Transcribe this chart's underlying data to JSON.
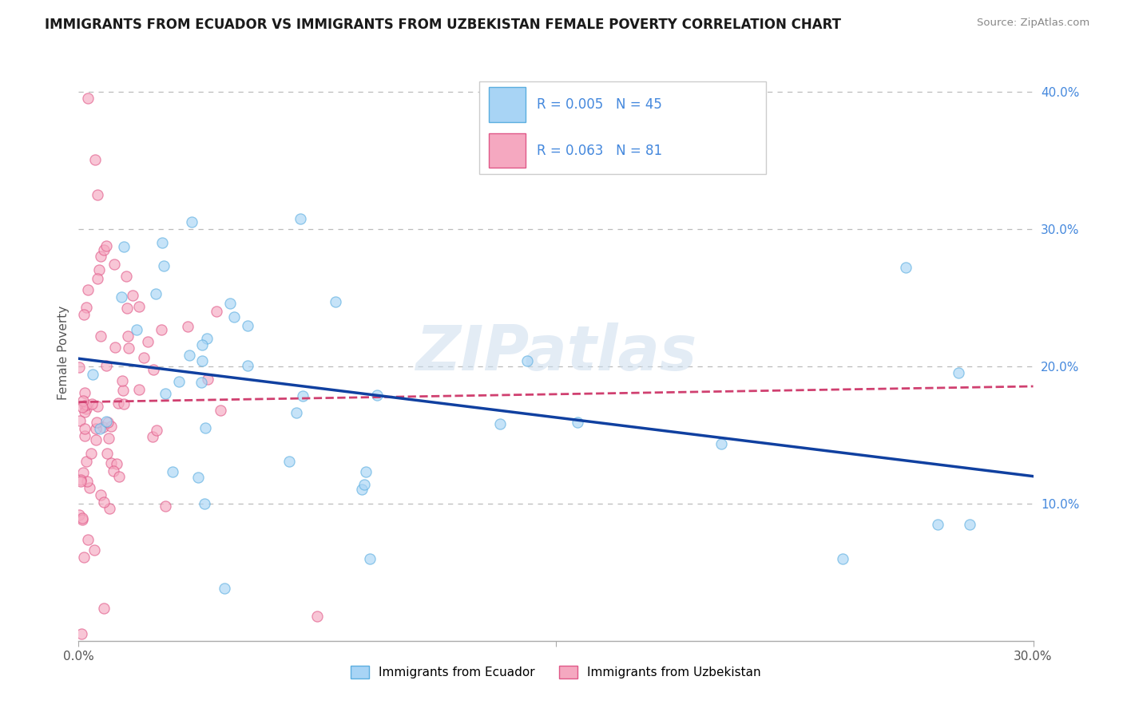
{
  "title": "IMMIGRANTS FROM ECUADOR VS IMMIGRANTS FROM UZBEKISTAN FEMALE POVERTY CORRELATION CHART",
  "source": "Source: ZipAtlas.com",
  "ylabel": "Female Poverty",
  "xlim": [
    0.0,
    0.3
  ],
  "ylim": [
    0.0,
    0.42
  ],
  "legend_labels": [
    "Immigrants from Ecuador",
    "Immigrants from Uzbekistan"
  ],
  "ecuador_face_color": "#A8D4F5",
  "ecuador_edge_color": "#5BAEE0",
  "uzbekistan_face_color": "#F5A8C0",
  "uzbekistan_edge_color": "#E05888",
  "ecuador_line_color": "#1040A0",
  "uzbekistan_line_color": "#D04070",
  "ytick_color": "#4488DD",
  "xtick_color": "#555555",
  "ecuador_R": 0.005,
  "ecuador_N": 45,
  "uzbekistan_R": 0.063,
  "uzbekistan_N": 81,
  "watermark": "ZIPatlas",
  "background_color": "#FFFFFF",
  "grid_color": "#BBBBBB"
}
